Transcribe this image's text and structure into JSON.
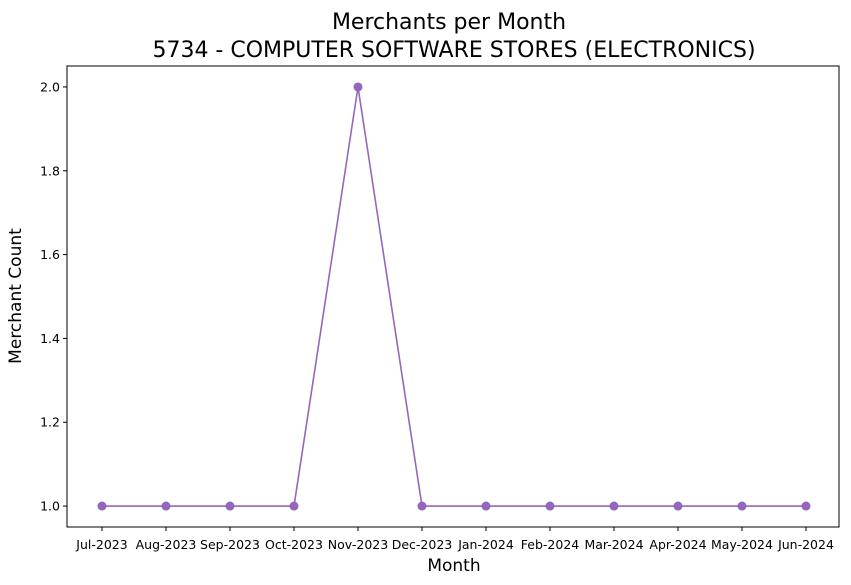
{
  "chart_data": {
    "type": "line",
    "title_line1": "Merchants per Month",
    "title_line2": "5734 - COMPUTER SOFTWARE STORES (ELECTRONICS)",
    "xlabel": "Month",
    "ylabel": "Merchant Count",
    "categories": [
      "Jul-2023",
      "Aug-2023",
      "Sep-2023",
      "Oct-2023",
      "Nov-2023",
      "Dec-2023",
      "Jan-2024",
      "Feb-2024",
      "Mar-2024",
      "Apr-2024",
      "May-2024",
      "Jun-2024"
    ],
    "values": [
      1,
      1,
      1,
      1,
      2,
      1,
      1,
      1,
      1,
      1,
      1,
      1
    ],
    "ylim": [
      0.95,
      2.05
    ],
    "yticks": [
      1.0,
      1.2,
      1.4,
      1.6,
      1.8,
      2.0
    ],
    "ytick_labels": [
      "1.0",
      "1.2",
      "1.4",
      "1.6",
      "1.8",
      "2.0"
    ],
    "color": "#9467bd",
    "grid": false,
    "marker": "circle"
  }
}
